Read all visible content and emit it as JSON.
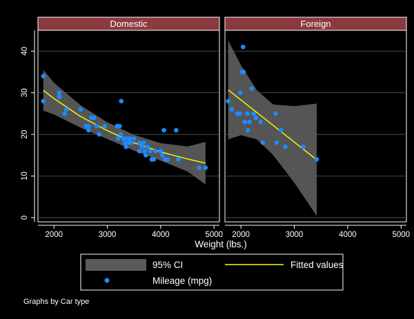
{
  "chart_data": {
    "type": "scatter",
    "layout": "by-panels",
    "xlabel": "Weight (lbs.)",
    "ylabel": "",
    "xlim": [
      1700,
      5100
    ],
    "ylim": [
      -1,
      45
    ],
    "x_ticks": [
      2000,
      3000,
      4000,
      5000
    ],
    "y_ticks": [
      0,
      10,
      20,
      30,
      40
    ],
    "x_tick_labels": [
      "2000",
      "3000",
      "4000",
      "5000"
    ],
    "y_tick_labels": [
      "0",
      "10",
      "20",
      "30",
      "40"
    ],
    "grid": true,
    "note": "Graphs by Car type",
    "legend": {
      "position": "bottom",
      "items": [
        {
          "label": "95% CI",
          "kind": "area",
          "color": "#5a5a5a"
        },
        {
          "label": "Fitted values",
          "kind": "line",
          "color": "#ffff00"
        },
        {
          "label": "Mileage (mpg)",
          "kind": "marker",
          "color": "#1a8cff"
        }
      ]
    },
    "colors": {
      "background": "#000000",
      "strip": "#8b3a3f",
      "ci": "#5a5a5a",
      "fit": "#ffff00",
      "points": "#1a8cff",
      "grid": "#5c5c5c"
    },
    "panels": [
      {
        "title": "Domestic",
        "points": [
          {
            "x": 1800,
            "y": 34
          },
          {
            "x": 1800,
            "y": 28
          },
          {
            "x": 2100,
            "y": 30
          },
          {
            "x": 2100,
            "y": 29
          },
          {
            "x": 2200,
            "y": 25
          },
          {
            "x": 2230,
            "y": 26
          },
          {
            "x": 2500,
            "y": 26
          },
          {
            "x": 2600,
            "y": 22
          },
          {
            "x": 2650,
            "y": 21
          },
          {
            "x": 2650,
            "y": 22
          },
          {
            "x": 2700,
            "y": 24
          },
          {
            "x": 2750,
            "y": 24
          },
          {
            "x": 2800,
            "y": 22
          },
          {
            "x": 2850,
            "y": 20
          },
          {
            "x": 2950,
            "y": 22
          },
          {
            "x": 3180,
            "y": 22
          },
          {
            "x": 3200,
            "y": 19
          },
          {
            "x": 3230,
            "y": 22
          },
          {
            "x": 3250,
            "y": 20
          },
          {
            "x": 3260,
            "y": 28
          },
          {
            "x": 3300,
            "y": 19
          },
          {
            "x": 3330,
            "y": 18
          },
          {
            "x": 3350,
            "y": 17
          },
          {
            "x": 3370,
            "y": 19
          },
          {
            "x": 3400,
            "y": 18
          },
          {
            "x": 3420,
            "y": 19
          },
          {
            "x": 3450,
            "y": 18
          },
          {
            "x": 3500,
            "y": 19
          },
          {
            "x": 3600,
            "y": 18
          },
          {
            "x": 3600,
            "y": 16
          },
          {
            "x": 3650,
            "y": 17
          },
          {
            "x": 3680,
            "y": 18
          },
          {
            "x": 3700,
            "y": 16
          },
          {
            "x": 3720,
            "y": 15
          },
          {
            "x": 3750,
            "y": 17
          },
          {
            "x": 3800,
            "y": 16
          },
          {
            "x": 3830,
            "y": 14
          },
          {
            "x": 3870,
            "y": 14
          },
          {
            "x": 3900,
            "y": 16
          },
          {
            "x": 4000,
            "y": 16
          },
          {
            "x": 4030,
            "y": 15
          },
          {
            "x": 4060,
            "y": 21
          },
          {
            "x": 4080,
            "y": 14
          },
          {
            "x": 4130,
            "y": 14
          },
          {
            "x": 4290,
            "y": 21
          },
          {
            "x": 4330,
            "y": 14
          },
          {
            "x": 4720,
            "y": 12
          },
          {
            "x": 4840,
            "y": 12
          }
        ],
        "fit": [
          {
            "x": 1800,
            "y": 30.6
          },
          {
            "x": 2000,
            "y": 28.6
          },
          {
            "x": 2500,
            "y": 24.3
          },
          {
            "x": 3000,
            "y": 20.9
          },
          {
            "x": 3500,
            "y": 18.0
          },
          {
            "x": 4000,
            "y": 15.8
          },
          {
            "x": 4500,
            "y": 14.1
          },
          {
            "x": 4840,
            "y": 13.1
          }
        ],
        "ci_upper": [
          {
            "x": 1800,
            "y": 35.5
          },
          {
            "x": 2000,
            "y": 32.4
          },
          {
            "x": 2500,
            "y": 27.0
          },
          {
            "x": 3000,
            "y": 22.9
          },
          {
            "x": 3500,
            "y": 19.9
          },
          {
            "x": 4000,
            "y": 17.9
          },
          {
            "x": 4500,
            "y": 17.1
          },
          {
            "x": 4840,
            "y": 18.2
          }
        ],
        "ci_lower": [
          {
            "x": 1800,
            "y": 25.7
          },
          {
            "x": 2000,
            "y": 24.8
          },
          {
            "x": 2500,
            "y": 21.6
          },
          {
            "x": 3000,
            "y": 18.9
          },
          {
            "x": 3500,
            "y": 16.1
          },
          {
            "x": 4000,
            "y": 13.7
          },
          {
            "x": 4500,
            "y": 11.1
          },
          {
            "x": 4840,
            "y": 8.0
          }
        ]
      },
      {
        "title": "Foreign",
        "points": [
          {
            "x": 1760,
            "y": 28
          },
          {
            "x": 1830,
            "y": 26
          },
          {
            "x": 1930,
            "y": 25
          },
          {
            "x": 1980,
            "y": 25
          },
          {
            "x": 1990,
            "y": 30
          },
          {
            "x": 2020,
            "y": 35
          },
          {
            "x": 2040,
            "y": 41
          },
          {
            "x": 2050,
            "y": 35
          },
          {
            "x": 2070,
            "y": 23
          },
          {
            "x": 2120,
            "y": 25
          },
          {
            "x": 2130,
            "y": 21
          },
          {
            "x": 2160,
            "y": 23
          },
          {
            "x": 2200,
            "y": 31
          },
          {
            "x": 2240,
            "y": 25
          },
          {
            "x": 2280,
            "y": 24
          },
          {
            "x": 2370,
            "y": 23
          },
          {
            "x": 2410,
            "y": 18
          },
          {
            "x": 2650,
            "y": 25
          },
          {
            "x": 2670,
            "y": 18
          },
          {
            "x": 2750,
            "y": 21
          },
          {
            "x": 2830,
            "y": 17
          },
          {
            "x": 3170,
            "y": 17
          },
          {
            "x": 3420,
            "y": 14
          }
        ],
        "fit": [
          {
            "x": 1760,
            "y": 30.7
          },
          {
            "x": 3420,
            "y": 13.9
          }
        ],
        "ci_upper": [
          {
            "x": 1760,
            "y": 42.6
          },
          {
            "x": 2000,
            "y": 36.6
          },
          {
            "x": 2300,
            "y": 30.6
          },
          {
            "x": 2600,
            "y": 27.2
          },
          {
            "x": 3000,
            "y": 26.8
          },
          {
            "x": 3420,
            "y": 27.4
          }
        ],
        "ci_lower": [
          {
            "x": 1760,
            "y": 18.8
          },
          {
            "x": 2000,
            "y": 19.8
          },
          {
            "x": 2300,
            "y": 18.8
          },
          {
            "x": 2600,
            "y": 15.1
          },
          {
            "x": 3000,
            "y": 8.4
          },
          {
            "x": 3420,
            "y": 0.4
          }
        ]
      }
    ]
  }
}
